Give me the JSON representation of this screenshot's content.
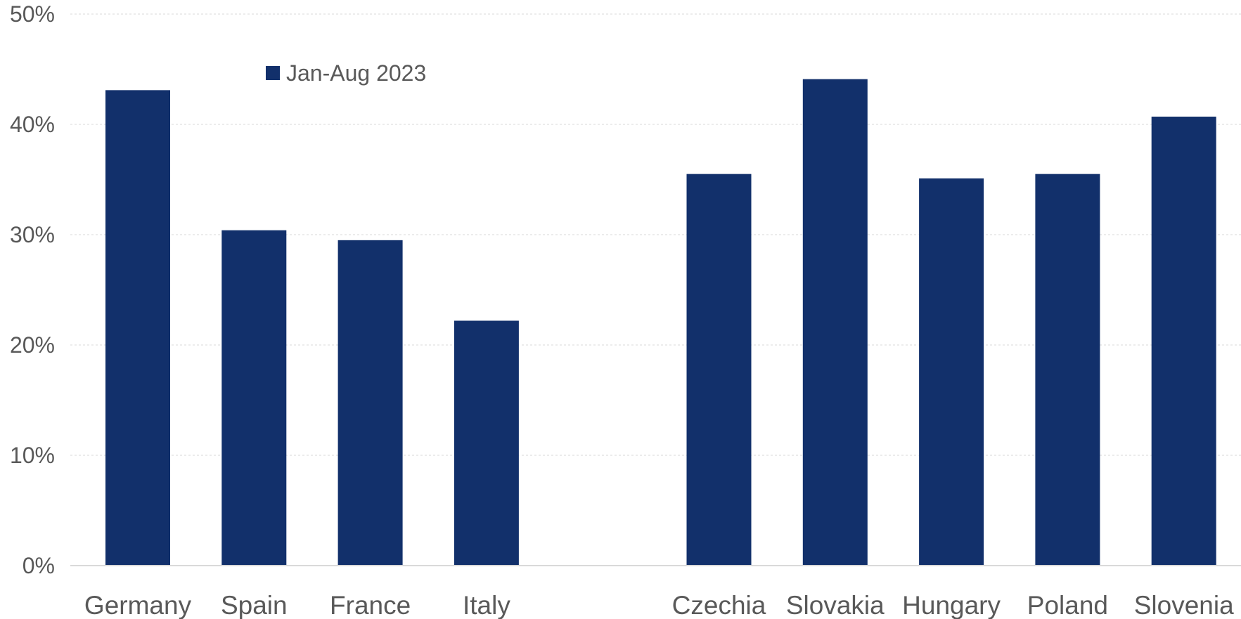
{
  "chart_data": {
    "type": "bar",
    "categories": [
      "Germany",
      "Spain",
      "France",
      "Italy",
      "",
      "Czechia",
      "Slovakia",
      "Hungary",
      "Poland",
      "Slovenia"
    ],
    "series": [
      {
        "name": "Jan-Aug 2023",
        "values": [
          43.1,
          30.4,
          29.5,
          22.2,
          null,
          35.5,
          44.1,
          35.1,
          35.5,
          40.7
        ]
      }
    ],
    "ylim": [
      0,
      50
    ],
    "yticks": [
      0,
      10,
      20,
      30,
      40,
      50
    ],
    "ytick_labels": [
      "0%",
      "10%",
      "20%",
      "30%",
      "40%",
      "50%"
    ],
    "grid": true,
    "legend_position": "top-left",
    "colors": {
      "bar": "#12306B",
      "grid": "#E6E6E6",
      "axis": "#D9D9D9",
      "text": "#595959"
    }
  }
}
